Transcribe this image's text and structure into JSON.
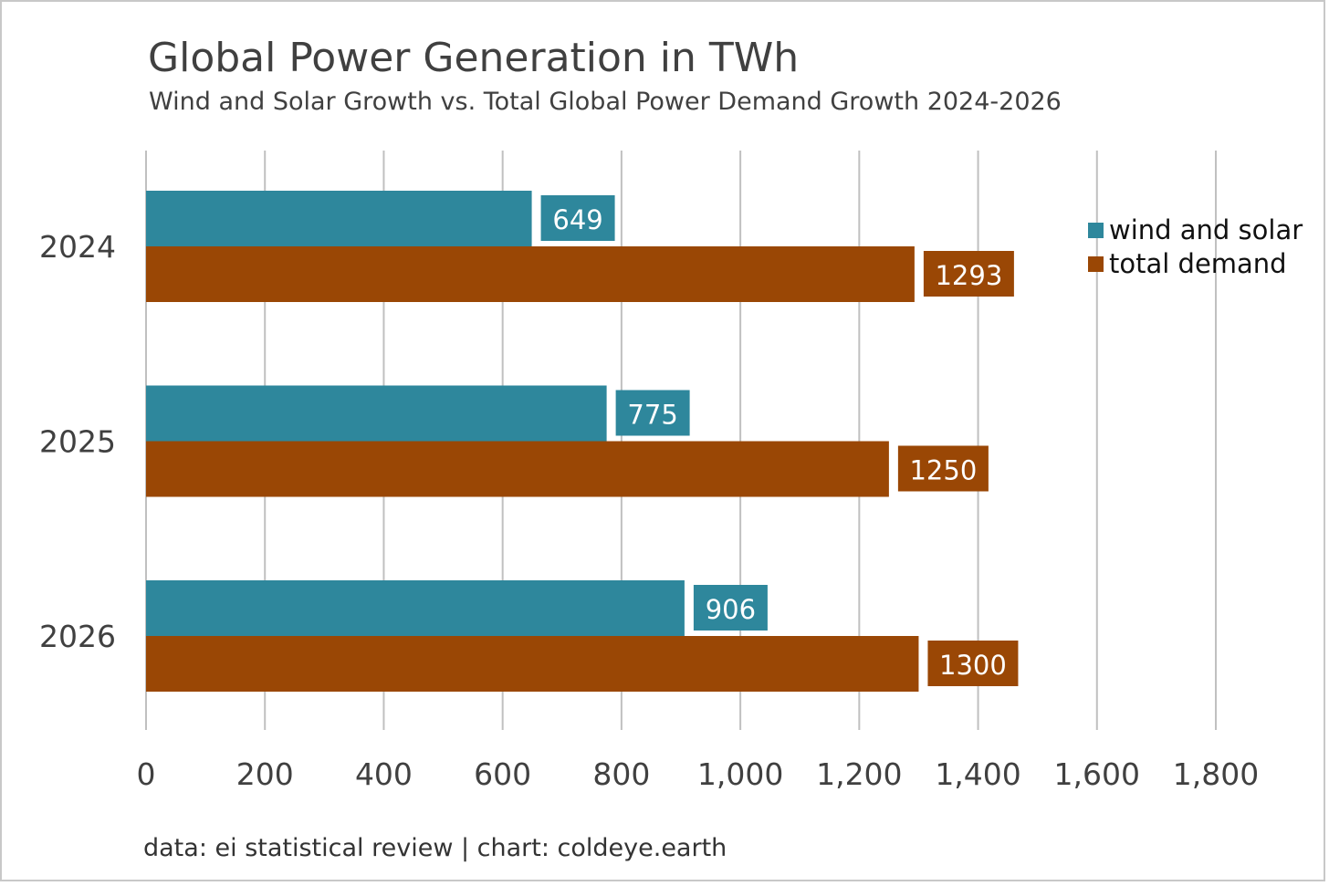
{
  "chart_data": {
    "type": "bar",
    "orientation": "horizontal",
    "title": "Global Power Generation in TWh",
    "subtitle": "Wind and Solar Growth vs. Total Global Power Demand Growth 2024-2026",
    "categories": [
      "2024",
      "2025",
      "2026"
    ],
    "series": [
      {
        "name": "wind and solar",
        "color": "#2e879c",
        "values": [
          649,
          775,
          906
        ]
      },
      {
        "name": "total demand",
        "color": "#9a4705",
        "values": [
          1293,
          1250,
          1300
        ]
      }
    ],
    "data_labels": [
      [
        "649",
        "775",
        "906"
      ],
      [
        "1293",
        "1250",
        "1300"
      ]
    ],
    "xlim": [
      0,
      1800
    ],
    "xticks": [
      0,
      200,
      400,
      600,
      800,
      1000,
      1200,
      1400,
      1600,
      1800
    ],
    "xtick_labels": [
      "0",
      "200",
      "400",
      "600",
      "800",
      "1,000",
      "1,200",
      "1,400",
      "1,600",
      "1,800"
    ],
    "xlabel": "",
    "ylabel": "",
    "grid": "vertical",
    "legend_position": "top-right",
    "gridline_color": "#c0c0c0"
  },
  "source_note": "data: ei statistical review | chart: coldeye.earth"
}
